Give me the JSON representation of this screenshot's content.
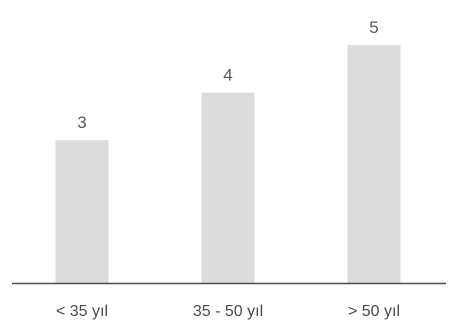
{
  "chart_data": {
    "type": "bar",
    "categories": [
      "< 35 yıl",
      "35 - 50 yıl",
      "> 50 yıl"
    ],
    "values": [
      3,
      4,
      5
    ],
    "title": "",
    "xlabel": "",
    "ylabel": "",
    "ylim": [
      0,
      5
    ],
    "grid": false,
    "legend": "none",
    "colors": {
      "bar": "#dcdcdc",
      "axis": "#4d4d4d",
      "value_label": "#595959",
      "tick_label": "#4a4a4a"
    }
  }
}
